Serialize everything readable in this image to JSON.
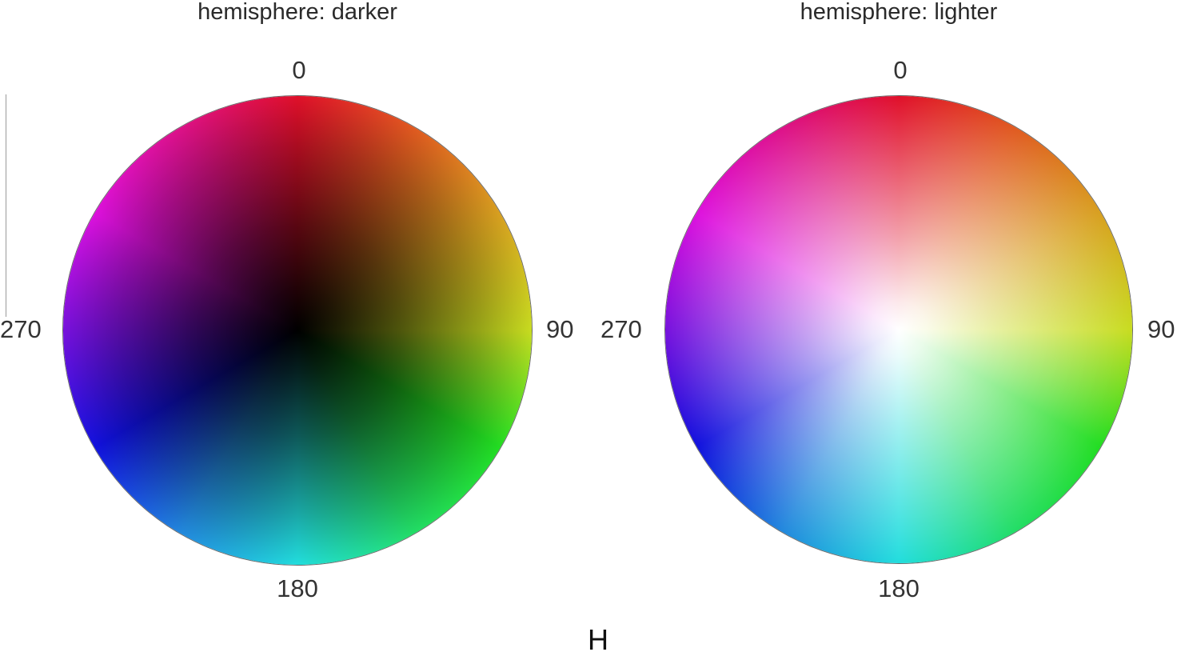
{
  "chart_data": {
    "type": "polar-heatmap",
    "xlabel": "H",
    "theta_ticks": [
      "0",
      "90",
      "180",
      "270"
    ],
    "theta_tick_values": [
      0,
      90,
      180,
      270
    ],
    "theta_direction": "clockwise",
    "theta_zero_location": "top",
    "panels": [
      {
        "title": "hemisphere: darker",
        "center_color": "#000000",
        "rim_colors": [
          {
            "hue": 0,
            "color": "#e0102a"
          },
          {
            "hue": 30,
            "color": "#e05a20"
          },
          {
            "hue": 60,
            "color": "#d8a020"
          },
          {
            "hue": 90,
            "color": "#c8dc20"
          },
          {
            "hue": 120,
            "color": "#22dd22"
          },
          {
            "hue": 150,
            "color": "#22dd66"
          },
          {
            "hue": 180,
            "color": "#22dddd"
          },
          {
            "hue": 210,
            "color": "#2288dd"
          },
          {
            "hue": 240,
            "color": "#1111dd"
          },
          {
            "hue": 270,
            "color": "#7711dd"
          },
          {
            "hue": 300,
            "color": "#dd11dd"
          },
          {
            "hue": 330,
            "color": "#dd1188"
          }
        ]
      },
      {
        "title": "hemisphere: lighter",
        "center_color": "#ffffff",
        "rim_colors": [
          {
            "hue": 0,
            "color": "#e0102a"
          },
          {
            "hue": 30,
            "color": "#e05a20"
          },
          {
            "hue": 60,
            "color": "#d8a020"
          },
          {
            "hue": 90,
            "color": "#c8dc20"
          },
          {
            "hue": 120,
            "color": "#22dd22"
          },
          {
            "hue": 150,
            "color": "#22dd66"
          },
          {
            "hue": 180,
            "color": "#22dddd"
          },
          {
            "hue": 210,
            "color": "#2288dd"
          },
          {
            "hue": 240,
            "color": "#1111dd"
          },
          {
            "hue": 270,
            "color": "#7711dd"
          },
          {
            "hue": 300,
            "color": "#dd11dd"
          },
          {
            "hue": 330,
            "color": "#dd1188"
          }
        ]
      }
    ]
  }
}
